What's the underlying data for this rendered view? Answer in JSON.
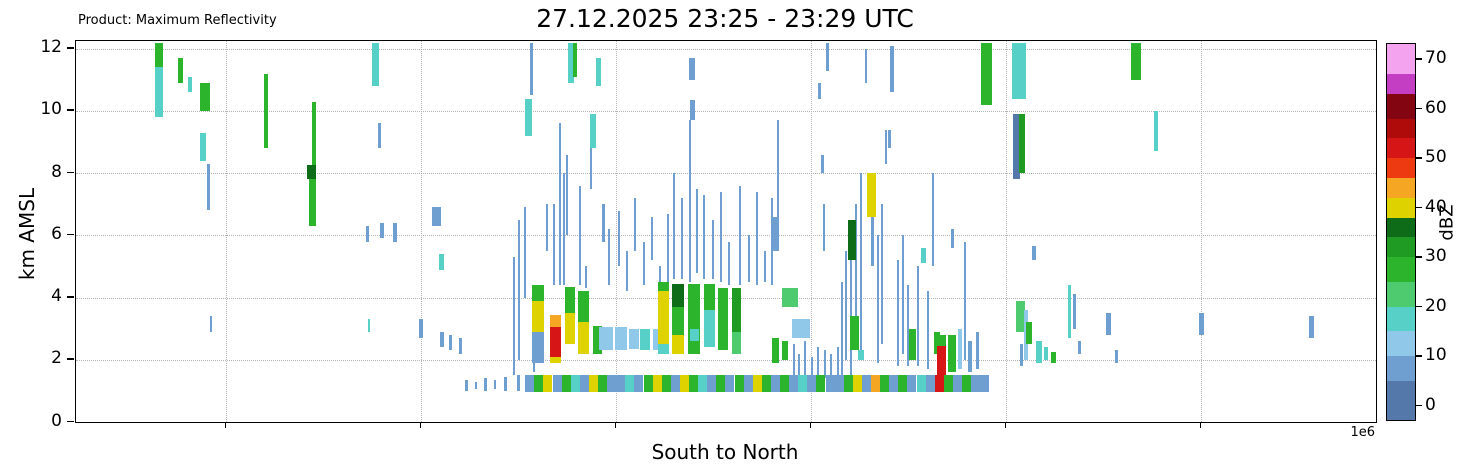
{
  "chart_data": {
    "type": "heatmap",
    "product": "Product: Maximum Reflectivity",
    "title": "27.12.2025 23:25 - 23:29 UTC",
    "xlabel": "South to North",
    "ylabel": "km AMSL",
    "x_offset_label": "1e6",
    "ylim": [
      0,
      12.25
    ],
    "yticks": [
      0,
      2,
      4,
      6,
      8,
      10,
      12
    ],
    "x_gridlines": [
      0.115,
      0.265,
      0.415,
      0.565,
      0.715,
      0.865
    ],
    "grid": true,
    "colorbar": {
      "label": "dBZ",
      "ticks": [
        0,
        10,
        20,
        30,
        40,
        50,
        60,
        70
      ],
      "range": [
        -3,
        73
      ],
      "bands": [
        [
          -3,
          5,
          "#5578ab"
        ],
        [
          5,
          10,
          "#6f9fd0"
        ],
        [
          10,
          15,
          "#8fc8e8"
        ],
        [
          15,
          20,
          "#57d0c8"
        ],
        [
          20,
          25,
          "#4ecb6e"
        ],
        [
          25,
          30,
          "#2cb52c"
        ],
        [
          30,
          34,
          "#1f9a23"
        ],
        [
          34,
          38,
          "#0e6b17"
        ],
        [
          38,
          42,
          "#ded300"
        ],
        [
          42,
          46,
          "#f5a623"
        ],
        [
          46,
          50,
          "#ed3a10"
        ],
        [
          50,
          54,
          "#d61616"
        ],
        [
          54,
          58,
          "#b00b0b"
        ],
        [
          58,
          63,
          "#840512"
        ],
        [
          63,
          67,
          "#c43ec4"
        ],
        [
          67,
          73,
          "#f4a3ef"
        ]
      ]
    },
    "echo_format": "[x_fraction, km_bottom, km_top, dbz, width_px]",
    "echoes": [
      [
        0.064,
        9.8,
        11.4,
        16,
        8
      ],
      [
        0.064,
        11.4,
        12.2,
        27,
        8
      ],
      [
        0.08,
        10.9,
        11.7,
        27,
        5
      ],
      [
        0.088,
        10.6,
        11.1,
        16,
        4
      ],
      [
        0.099,
        10.0,
        10.9,
        27,
        10
      ],
      [
        0.098,
        8.4,
        9.3,
        16,
        6
      ],
      [
        0.102,
        6.8,
        8.3,
        5,
        3
      ],
      [
        0.104,
        2.9,
        3.4,
        5,
        2
      ],
      [
        0.146,
        8.8,
        11.2,
        27,
        4
      ],
      [
        0.181,
        7.8,
        8.25,
        34,
        9
      ],
      [
        0.182,
        6.3,
        7.8,
        27,
        7
      ],
      [
        0.183,
        8.25,
        10.3,
        27,
        4
      ],
      [
        0.224,
        5.8,
        6.3,
        5,
        3
      ],
      [
        0.2255,
        2.9,
        3.3,
        16,
        2
      ],
      [
        0.23,
        10.8,
        12.2,
        16,
        7
      ],
      [
        0.2335,
        8.8,
        9.6,
        5,
        3
      ],
      [
        0.2355,
        5.9,
        6.4,
        5,
        4
      ],
      [
        0.2455,
        5.8,
        6.4,
        5,
        4
      ],
      [
        0.2655,
        2.7,
        3.3,
        5,
        4
      ],
      [
        0.277,
        6.3,
        6.9,
        8,
        9
      ],
      [
        0.281,
        4.9,
        5.4,
        16,
        5
      ],
      [
        0.2815,
        2.4,
        2.9,
        5,
        4
      ],
      [
        0.288,
        2.3,
        2.8,
        5,
        3
      ],
      [
        0.296,
        2.2,
        2.7,
        5,
        3
      ],
      [
        0.3,
        1.0,
        1.35,
        5,
        3
      ],
      [
        0.308,
        1.05,
        1.3,
        5,
        2
      ],
      [
        0.315,
        1.0,
        1.4,
        8,
        3
      ],
      [
        0.322,
        1.05,
        1.35,
        5,
        2
      ],
      [
        0.33,
        1.0,
        1.45,
        5,
        3
      ],
      [
        0.34,
        1.0,
        1.5,
        8,
        3
      ],
      [
        0.337,
        1.5,
        5.3,
        5,
        2
      ],
      [
        0.341,
        2.0,
        6.5,
        5,
        2
      ],
      [
        0.345,
        4.0,
        6.9,
        5,
        2
      ],
      [
        0.348,
        9.2,
        10.4,
        15,
        7
      ],
      [
        0.35,
        10.5,
        12.2,
        5,
        3
      ],
      [
        0.352,
        1.6,
        3.0,
        5,
        2
      ],
      [
        0.362,
        5.5,
        7.0,
        5,
        2
      ],
      [
        0.368,
        4.4,
        7.0,
        5,
        2
      ],
      [
        0.372,
        4.4,
        9.6,
        5,
        2
      ],
      [
        0.375,
        4.4,
        8.0,
        5,
        2
      ],
      [
        0.378,
        6.0,
        8.6,
        5,
        2
      ],
      [
        0.381,
        10.9,
        12.2,
        16,
        6
      ],
      [
        0.3835,
        11.1,
        12.2,
        27,
        4
      ],
      [
        0.388,
        4.4,
        7.6,
        5,
        2
      ],
      [
        0.392,
        4.3,
        5.0,
        5,
        2
      ],
      [
        0.396,
        7.5,
        9.8,
        5,
        2
      ],
      [
        0.398,
        8.8,
        9.9,
        15,
        6
      ],
      [
        0.402,
        10.8,
        11.7,
        15,
        5
      ],
      [
        0.406,
        5.8,
        7.0,
        5,
        3
      ],
      [
        0.41,
        4.4,
        6.2,
        5,
        2
      ],
      [
        0.418,
        5.0,
        6.8,
        5,
        2
      ],
      [
        0.424,
        4.2,
        5.5,
        5,
        2
      ],
      [
        0.43,
        5.5,
        7.2,
        5,
        2
      ],
      [
        0.437,
        4.4,
        5.8,
        5,
        2
      ],
      [
        0.443,
        5.2,
        6.6,
        5,
        2
      ],
      [
        0.449,
        3.4,
        5.0,
        5,
        2
      ],
      [
        0.355,
        3.9,
        4.4,
        27,
        12
      ],
      [
        0.355,
        2.9,
        3.9,
        40,
        12
      ],
      [
        0.355,
        1.9,
        2.9,
        8,
        12
      ],
      [
        0.369,
        2.1,
        3.05,
        52,
        11
      ],
      [
        0.369,
        3.05,
        3.45,
        45,
        11
      ],
      [
        0.369,
        1.9,
        2.1,
        40,
        11
      ],
      [
        0.38,
        2.5,
        3.5,
        40,
        10
      ],
      [
        0.38,
        3.5,
        4.35,
        27,
        10
      ],
      [
        0.39,
        2.2,
        3.2,
        40,
        11
      ],
      [
        0.39,
        3.2,
        4.2,
        27,
        11
      ],
      [
        0.401,
        2.2,
        3.1,
        27,
        9
      ],
      [
        0.408,
        2.3,
        3.05,
        10,
        14
      ],
      [
        0.419,
        2.3,
        3.05,
        12,
        12
      ],
      [
        0.429,
        2.35,
        3.0,
        10,
        10
      ],
      [
        0.438,
        2.3,
        3.0,
        15,
        10
      ],
      [
        0.447,
        2.3,
        3.0,
        10,
        8
      ],
      [
        0.452,
        4.2,
        4.5,
        27,
        11
      ],
      [
        0.452,
        2.5,
        4.2,
        40,
        11
      ],
      [
        0.452,
        2.2,
        2.5,
        15,
        11
      ],
      [
        0.463,
        3.7,
        4.45,
        34,
        12
      ],
      [
        0.463,
        2.8,
        3.7,
        27,
        12
      ],
      [
        0.463,
        2.2,
        2.8,
        40,
        12
      ],
      [
        0.475,
        2.2,
        4.45,
        27,
        12
      ],
      [
        0.4755,
        2.6,
        3.0,
        15,
        9
      ],
      [
        0.487,
        3.6,
        4.45,
        27,
        11
      ],
      [
        0.487,
        2.4,
        3.6,
        15,
        11
      ],
      [
        0.498,
        2.3,
        4.3,
        27,
        10
      ],
      [
        0.508,
        2.9,
        4.3,
        30,
        9
      ],
      [
        0.508,
        2.2,
        2.9,
        20,
        9
      ],
      [
        0.455,
        4.5,
        6.7,
        5,
        2
      ],
      [
        0.46,
        4.6,
        8.0,
        5,
        2
      ],
      [
        0.466,
        4.6,
        7.2,
        5,
        2
      ],
      [
        0.472,
        4.5,
        9.7,
        5,
        2
      ],
      [
        0.474,
        9.7,
        10.35,
        6,
        5
      ],
      [
        0.4735,
        11.0,
        11.7,
        8,
        6
      ],
      [
        0.478,
        4.8,
        7.5,
        5,
        2
      ],
      [
        0.483,
        4.6,
        7.3,
        5,
        2
      ],
      [
        0.49,
        4.6,
        6.5,
        5,
        2
      ],
      [
        0.496,
        4.5,
        7.4,
        5,
        2
      ],
      [
        0.502,
        4.4,
        5.8,
        5,
        2
      ],
      [
        0.511,
        4.4,
        7.6,
        5,
        2
      ],
      [
        0.518,
        4.5,
        6.0,
        5,
        2
      ],
      [
        0.524,
        4.4,
        7.4,
        5,
        2
      ],
      [
        0.53,
        4.5,
        5.5,
        5,
        2
      ],
      [
        0.535,
        4.4,
        7.2,
        5,
        2
      ],
      [
        0.538,
        1.9,
        2.7,
        27,
        7
      ],
      [
        0.5385,
        5.5,
        6.6,
        8,
        6
      ],
      [
        0.54,
        5.5,
        9.7,
        5,
        2
      ],
      [
        0.545,
        2.0,
        2.6,
        27,
        6
      ],
      [
        0.549,
        3.7,
        4.3,
        22,
        16
      ],
      [
        0.558,
        2.7,
        3.3,
        12,
        18
      ],
      [
        0.552,
        1.3,
        2.5,
        5,
        2
      ],
      [
        0.556,
        1.4,
        2.2,
        8,
        2
      ],
      [
        0.561,
        1.3,
        2.6,
        5,
        2
      ],
      [
        0.566,
        1.4,
        2.1,
        8,
        2
      ],
      [
        0.571,
        1.3,
        2.4,
        5,
        2
      ],
      [
        0.576,
        1.4,
        2.3,
        8,
        2
      ],
      [
        0.581,
        1.3,
        2.2,
        5,
        2
      ],
      [
        0.586,
        1.4,
        2.4,
        8,
        2
      ],
      [
        0.575,
        5.5,
        7.0,
        5,
        2
      ],
      [
        0.5745,
        8.0,
        8.6,
        6,
        3
      ],
      [
        0.578,
        11.3,
        12.2,
        5,
        3
      ],
      [
        0.572,
        10.4,
        10.9,
        5,
        3
      ],
      [
        0.589,
        1.5,
        4.5,
        5,
        2
      ],
      [
        0.592,
        2.0,
        5.5,
        5,
        2
      ],
      [
        0.596,
        1.5,
        6.5,
        5,
        2
      ],
      [
        0.6,
        3.0,
        7.0,
        5,
        2
      ],
      [
        0.604,
        2.0,
        8.0,
        5,
        2
      ],
      [
        0.597,
        5.2,
        6.5,
        34,
        8
      ],
      [
        0.599,
        2.3,
        3.4,
        27,
        9
      ],
      [
        0.6035,
        2.0,
        2.3,
        15,
        6
      ],
      [
        0.608,
        10.9,
        12.0,
        5,
        2
      ],
      [
        0.612,
        6.6,
        8.0,
        40,
        9
      ],
      [
        0.6125,
        5.0,
        6.6,
        6,
        3
      ],
      [
        0.617,
        1.9,
        6.0,
        5,
        2
      ],
      [
        0.62,
        2.5,
        7.0,
        5,
        2
      ],
      [
        0.623,
        8.3,
        9.4,
        5,
        2
      ],
      [
        0.6275,
        10.6,
        12.1,
        6,
        4
      ],
      [
        0.626,
        8.8,
        9.4,
        5,
        3
      ],
      [
        0.632,
        1.8,
        5.2,
        5,
        2
      ],
      [
        0.636,
        2.2,
        6.0,
        5,
        2
      ],
      [
        0.64,
        1.8,
        4.4,
        5,
        2
      ],
      [
        0.6435,
        2.0,
        3.0,
        27,
        7
      ],
      [
        0.648,
        1.8,
        5.0,
        5,
        2
      ],
      [
        0.652,
        5.1,
        5.6,
        16,
        5
      ],
      [
        0.655,
        1.7,
        4.2,
        5,
        2
      ],
      [
        0.659,
        5.0,
        8.0,
        5,
        2
      ],
      [
        0.662,
        2.2,
        2.9,
        27,
        6
      ],
      [
        0.666,
        1.5,
        2.45,
        52,
        9
      ],
      [
        0.666,
        2.45,
        2.8,
        27,
        9
      ],
      [
        0.674,
        1.6,
        2.8,
        27,
        8
      ],
      [
        0.6745,
        5.6,
        6.2,
        6,
        3
      ],
      [
        0.68,
        1.7,
        3.0,
        10,
        4
      ],
      [
        0.684,
        2.0,
        5.8,
        5,
        2
      ],
      [
        0.688,
        1.6,
        2.6,
        8,
        4
      ],
      [
        0.6935,
        1.7,
        2.9,
        6,
        3
      ],
      [
        0.7,
        10.2,
        12.2,
        27,
        11
      ],
      [
        0.7255,
        10.4,
        12.2,
        16,
        14
      ],
      [
        0.7235,
        7.8,
        9.9,
        2,
        7
      ],
      [
        0.728,
        8.0,
        9.9,
        30,
        6
      ],
      [
        0.7265,
        2.9,
        3.9,
        22,
        9
      ],
      [
        0.731,
        2.0,
        3.6,
        10,
        4
      ],
      [
        0.727,
        1.8,
        2.5,
        8,
        3
      ],
      [
        0.733,
        2.5,
        3.2,
        27,
        6
      ],
      [
        0.737,
        5.2,
        5.65,
        8,
        4
      ],
      [
        0.741,
        1.9,
        2.6,
        16,
        6
      ],
      [
        0.746,
        2.0,
        2.4,
        16,
        4
      ],
      [
        0.752,
        1.9,
        2.25,
        27,
        5
      ],
      [
        0.764,
        2.7,
        4.4,
        15,
        3
      ],
      [
        0.768,
        3.0,
        4.1,
        8,
        3
      ],
      [
        0.772,
        2.2,
        2.6,
        8,
        3
      ],
      [
        0.794,
        2.8,
        3.5,
        8,
        5
      ],
      [
        0.8,
        1.9,
        2.3,
        6,
        3
      ],
      [
        0.8155,
        11.0,
        12.2,
        27,
        10
      ],
      [
        0.831,
        8.7,
        10.0,
        16,
        4
      ],
      [
        0.866,
        2.8,
        3.5,
        8,
        5
      ],
      [
        0.95,
        2.7,
        3.4,
        8,
        5
      ],
      [
        0.349,
        0.95,
        1.5,
        6,
        9
      ],
      [
        0.356,
        0.95,
        1.5,
        27,
        9
      ],
      [
        0.363,
        0.95,
        1.5,
        40,
        9
      ],
      [
        0.37,
        0.95,
        1.5,
        8,
        9
      ],
      [
        0.377,
        0.95,
        1.5,
        27,
        9
      ],
      [
        0.384,
        0.95,
        1.5,
        15,
        9
      ],
      [
        0.391,
        0.95,
        1.5,
        8,
        9
      ],
      [
        0.398,
        0.95,
        1.5,
        40,
        9
      ],
      [
        0.405,
        0.95,
        1.5,
        27,
        9
      ],
      [
        0.412,
        0.95,
        1.5,
        8,
        9
      ],
      [
        0.419,
        0.95,
        1.5,
        6,
        9
      ],
      [
        0.426,
        0.95,
        1.5,
        15,
        9
      ],
      [
        0.433,
        0.95,
        1.5,
        8,
        9
      ],
      [
        0.44,
        0.95,
        1.5,
        27,
        9
      ],
      [
        0.447,
        0.95,
        1.5,
        40,
        9
      ],
      [
        0.454,
        0.95,
        1.5,
        27,
        9
      ],
      [
        0.461,
        0.95,
        1.5,
        8,
        9
      ],
      [
        0.468,
        0.95,
        1.5,
        40,
        9
      ],
      [
        0.475,
        0.95,
        1.5,
        27,
        9
      ],
      [
        0.482,
        0.95,
        1.5,
        15,
        9
      ],
      [
        0.489,
        0.95,
        1.5,
        8,
        9
      ],
      [
        0.496,
        0.95,
        1.5,
        27,
        9
      ],
      [
        0.503,
        0.95,
        1.5,
        6,
        9
      ],
      [
        0.51,
        0.95,
        1.5,
        27,
        9
      ],
      [
        0.517,
        0.95,
        1.5,
        8,
        9
      ],
      [
        0.524,
        0.95,
        1.5,
        40,
        9
      ],
      [
        0.531,
        0.95,
        1.5,
        27,
        9
      ],
      [
        0.538,
        0.95,
        1.5,
        8,
        9
      ],
      [
        0.545,
        0.95,
        1.5,
        27,
        9
      ],
      [
        0.552,
        0.95,
        1.5,
        6,
        9
      ],
      [
        0.559,
        0.95,
        1.5,
        15,
        9
      ],
      [
        0.566,
        0.95,
        1.5,
        8,
        9
      ],
      [
        0.573,
        0.95,
        1.5,
        27,
        9
      ],
      [
        0.58,
        0.95,
        1.5,
        6,
        9
      ],
      [
        0.587,
        0.95,
        1.5,
        8,
        9
      ],
      [
        0.594,
        0.95,
        1.5,
        27,
        9
      ],
      [
        0.601,
        0.95,
        1.5,
        40,
        9
      ],
      [
        0.608,
        0.95,
        1.5,
        8,
        9
      ],
      [
        0.615,
        0.95,
        1.5,
        45,
        9
      ],
      [
        0.622,
        0.95,
        1.5,
        27,
        9
      ],
      [
        0.629,
        0.95,
        1.5,
        8,
        9
      ],
      [
        0.636,
        0.95,
        1.5,
        27,
        9
      ],
      [
        0.643,
        0.95,
        1.5,
        6,
        9
      ],
      [
        0.65,
        0.95,
        1.5,
        15,
        9
      ],
      [
        0.657,
        0.95,
        1.5,
        8,
        9
      ],
      [
        0.664,
        0.95,
        1.5,
        52,
        9
      ],
      [
        0.671,
        0.95,
        1.5,
        27,
        9
      ],
      [
        0.678,
        0.95,
        1.5,
        8,
        9
      ],
      [
        0.685,
        0.95,
        1.5,
        27,
        9
      ],
      [
        0.692,
        0.95,
        1.5,
        6,
        9
      ],
      [
        0.699,
        0.95,
        1.5,
        8,
        9
      ]
    ]
  }
}
